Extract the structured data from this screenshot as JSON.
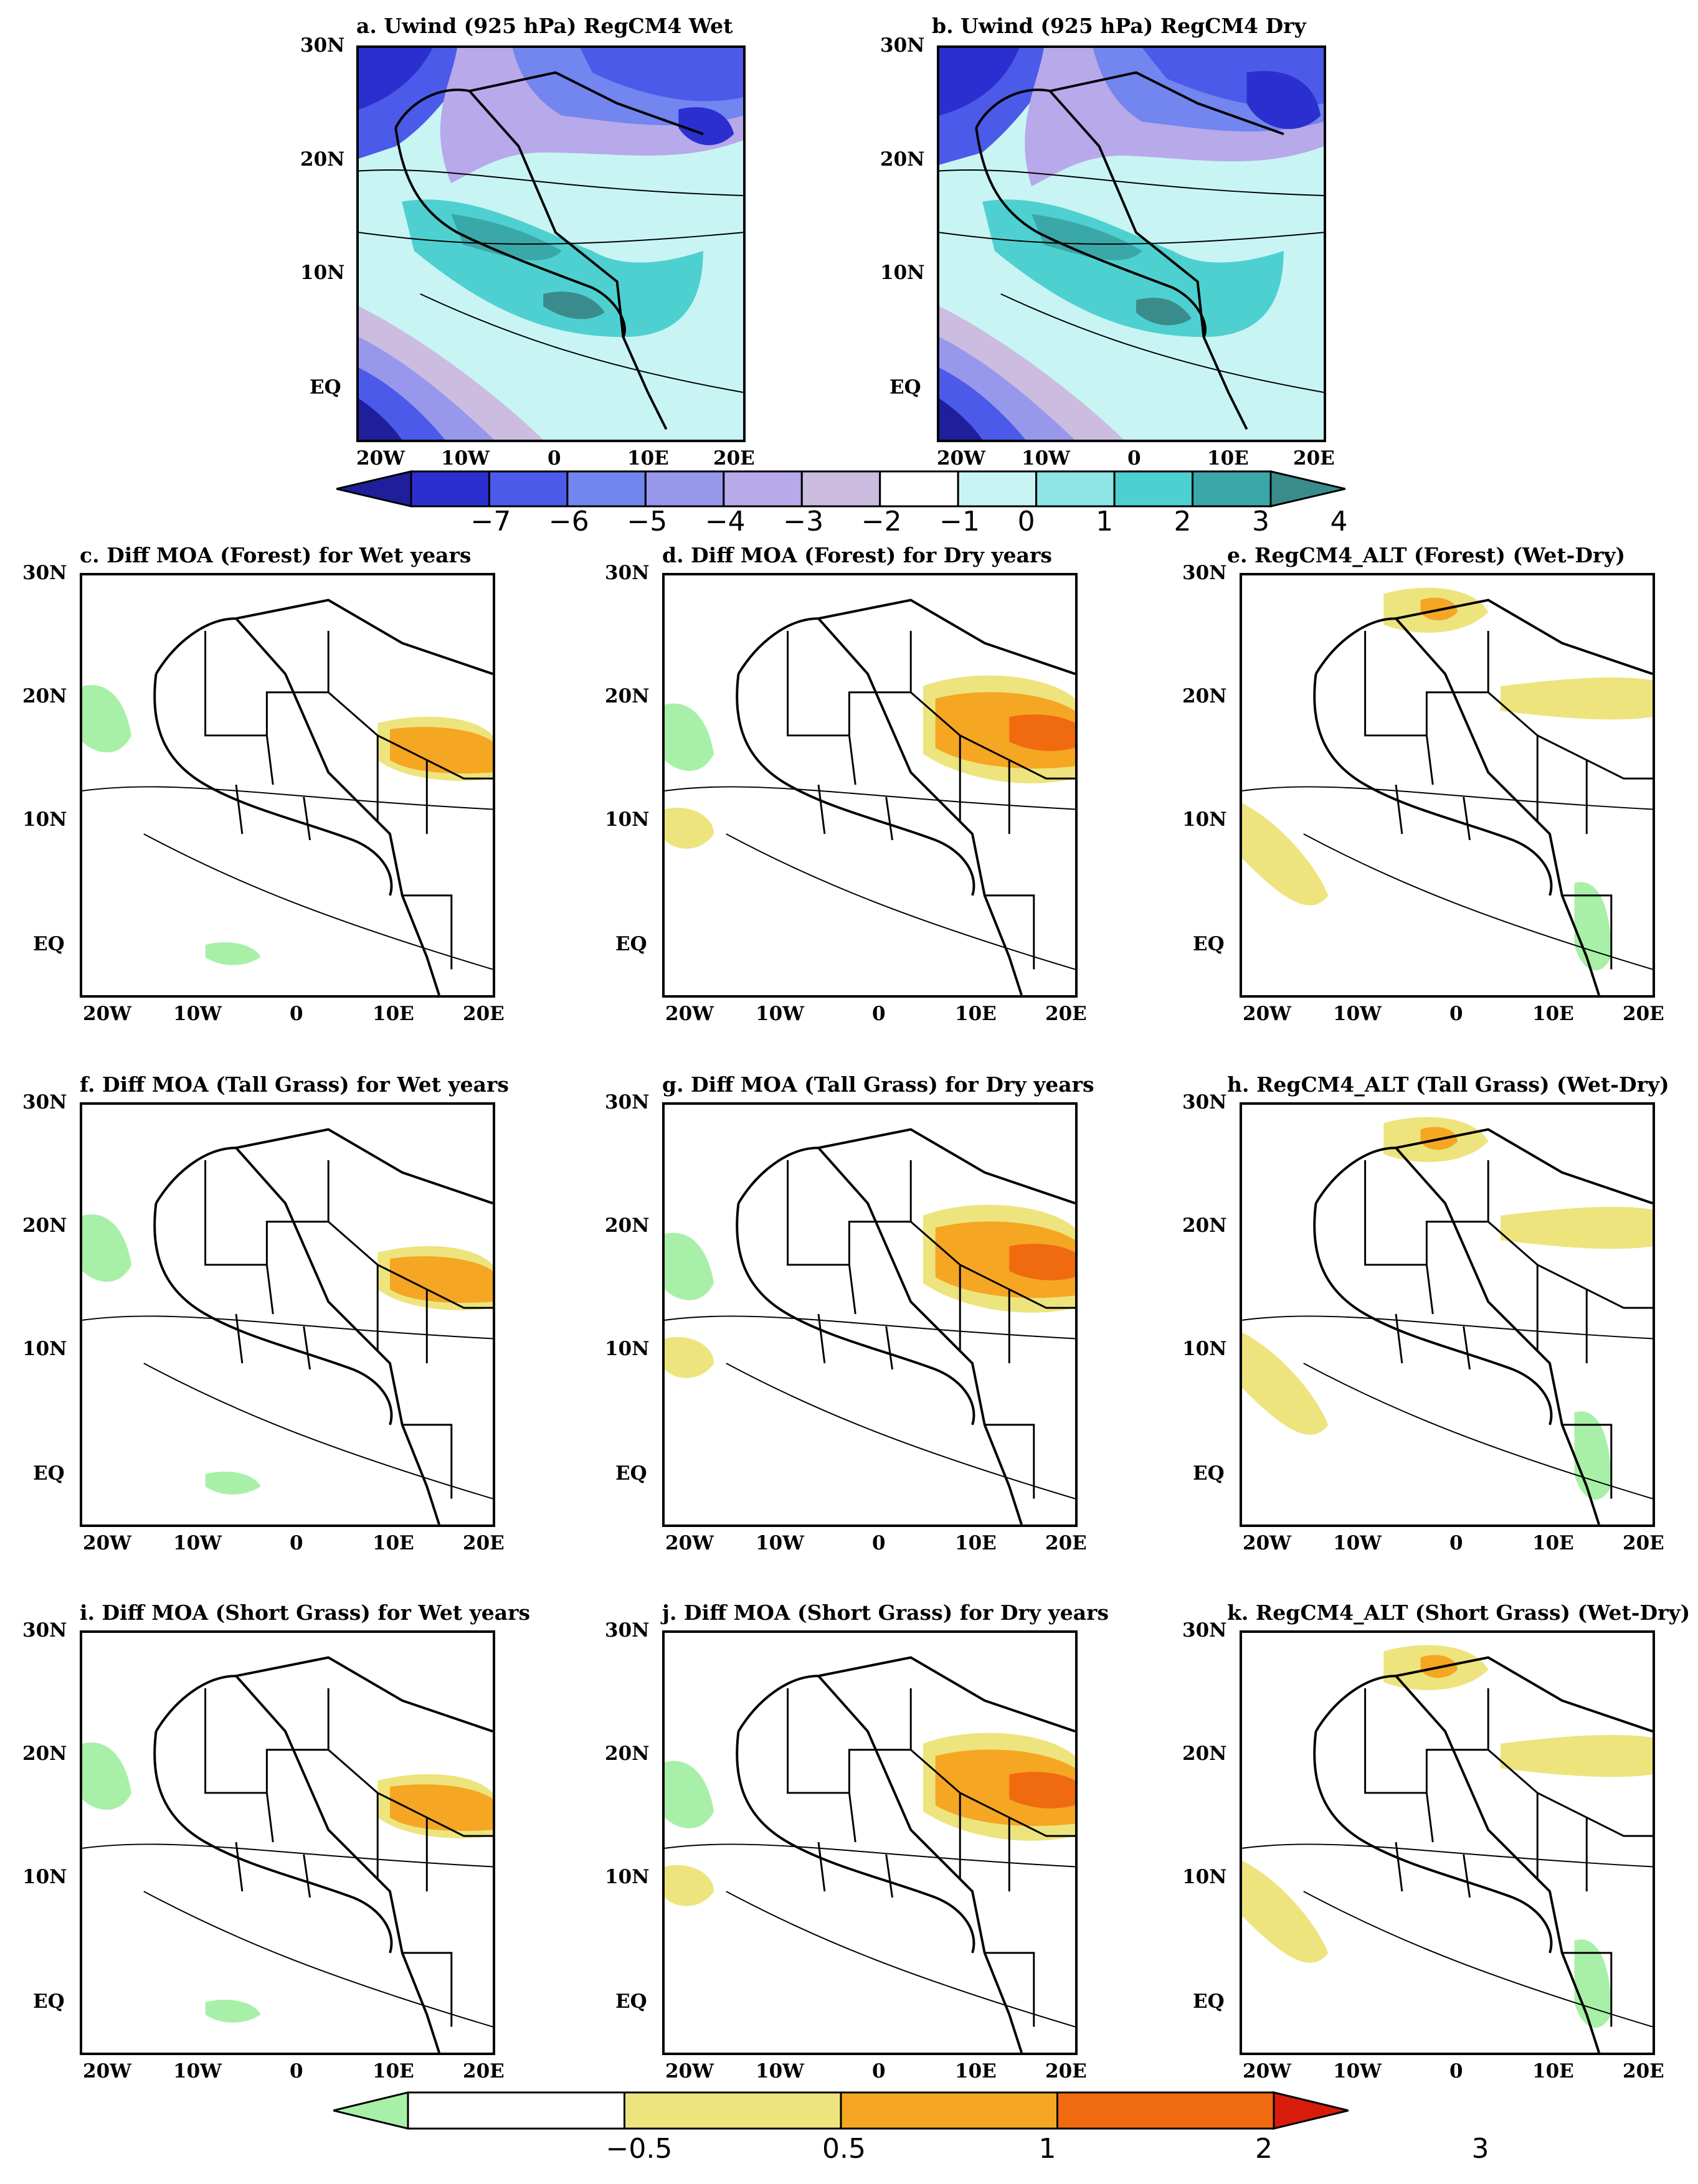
{
  "top_panels": [
    {
      "id": "a",
      "title": "a. Uwind (925 hPa) RegCM4 Wet"
    },
    {
      "id": "b",
      "title": "b. Uwind (925 hPa) RegCM4 Dry"
    }
  ],
  "grid_panels": [
    {
      "id": "c",
      "title": "c. Diff MOA (Forest) for Wet years"
    },
    {
      "id": "d",
      "title": "d. Diff MOA (Forest) for Dry years"
    },
    {
      "id": "e",
      "title": "e. RegCM4_ALT (Forest) (Wet-Dry)"
    },
    {
      "id": "f",
      "title": "f. Diff MOA (Tall Grass) for Wet years"
    },
    {
      "id": "g",
      "title": "g. Diff MOA (Tall Grass) for Dry years"
    },
    {
      "id": "h",
      "title": "h. RegCM4_ALT (Tall Grass) (Wet-Dry)"
    },
    {
      "id": "i",
      "title": "i. Diff MOA (Short Grass) for Wet years"
    },
    {
      "id": "j",
      "title": "j. Diff MOA (Short Grass) for Dry years"
    },
    {
      "id": "k",
      "title": "k. RegCM4_ALT (Short Grass) (Wet-Dry)"
    }
  ],
  "lat_labels": [
    "30N",
    "20N",
    "10N",
    "EQ"
  ],
  "lon_labels": [
    "20W",
    "10W",
    "0",
    "10E",
    "20E"
  ],
  "colorbar_top": {
    "labels": [
      "−7",
      "−6",
      "−5",
      "−4",
      "−3",
      "−2",
      "−1",
      "0",
      "1",
      "2",
      "3",
      "4"
    ],
    "colors": [
      "#1f1f9c",
      "#2b2fd0",
      "#4b5ae8",
      "#7385ee",
      "#9797ec",
      "#b7a9ea",
      "#cbbce0",
      "#ffffff",
      "#c9f4f4",
      "#8ee6e6",
      "#4fd0d0",
      "#3aa8a8",
      "#3a8c8c"
    ]
  },
  "colorbar_bottom": {
    "labels": [
      "−0.5",
      "0.5",
      "1",
      "2",
      "3"
    ],
    "colors": [
      "#a8f0a8",
      "#ffffff",
      "#ede47e",
      "#f5a623",
      "#f06a10",
      "#d81c0c"
    ]
  }
}
